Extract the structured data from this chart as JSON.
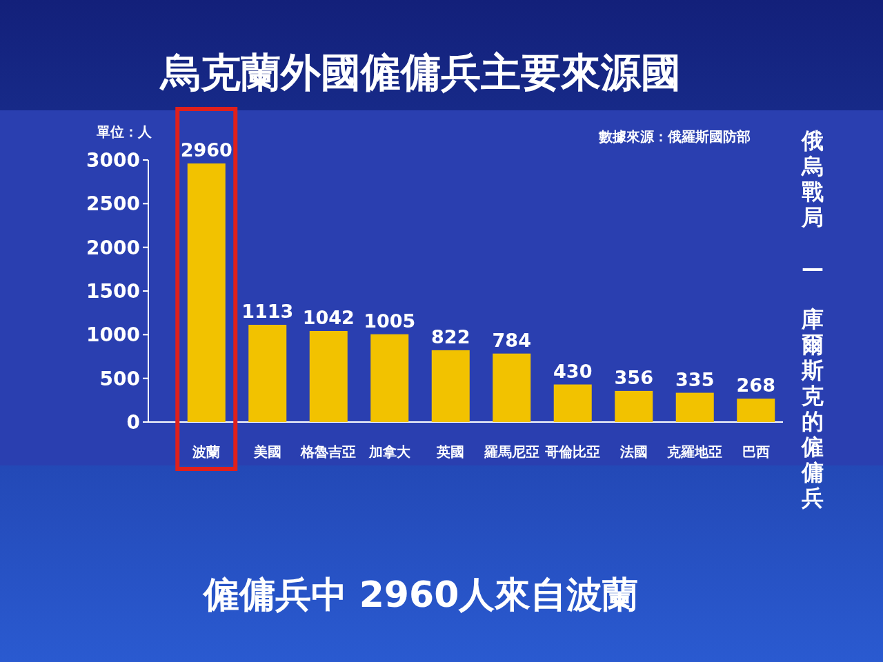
{
  "chart_data": {
    "type": "bar",
    "title": "烏克蘭外國僱傭兵主要來源國",
    "ylabel": "單位：人",
    "categories": [
      "波蘭",
      "美國",
      "格魯吉亞",
      "加拿大",
      "英國",
      "羅馬尼亞",
      "哥倫比亞",
      "法國",
      "克羅地亞",
      "巴西"
    ],
    "values": [
      2960,
      1113,
      1042,
      1005,
      822,
      784,
      430,
      356,
      335,
      268
    ],
    "color": "#f2c200",
    "ylim": [
      0,
      3000
    ],
    "yticks": [
      0,
      500,
      1000,
      1500,
      2000,
      2500,
      3000
    ],
    "data_labels": true,
    "annotations": [
      "數據來源：俄羅斯國防部",
      "俄烏戰局 — 庫爾斯克的僱傭兵",
      "僱傭兵中 2960人來自波蘭"
    ]
  }
}
